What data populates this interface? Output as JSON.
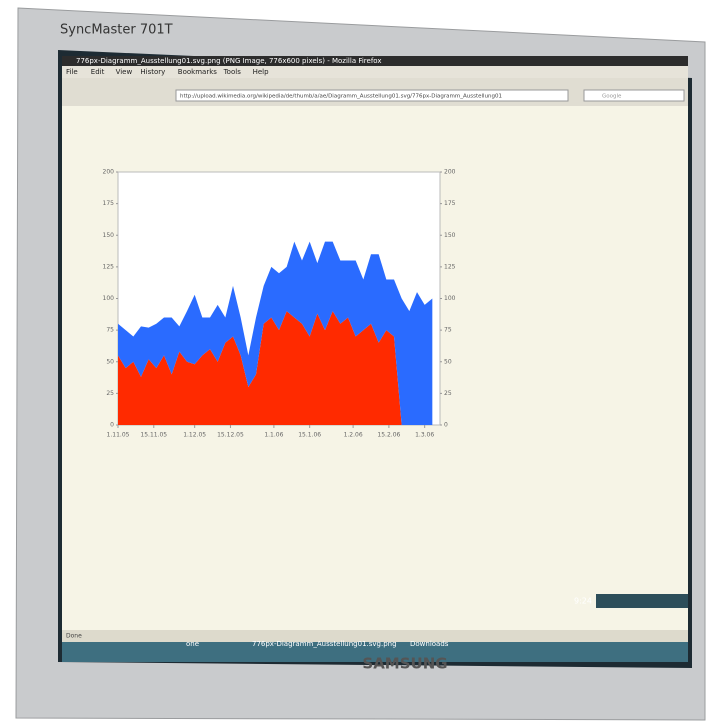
{
  "monitor": {
    "model": "SyncMaster 701T",
    "brand": "SAMSUNG"
  },
  "browser": {
    "title": "776px-Diagramm_Ausstellung01.svg.png (PNG Image, 776x600 pixels) - Mozilla Firefox",
    "menu": [
      "File",
      "Edit",
      "View",
      "History",
      "Bookmarks",
      "Tools",
      "Help"
    ],
    "url": "http://upload.wikimedia.org/wikipedia/de/thumb/a/ae/Diagramm_Ausstellung01.svg/776px-Diagramm_Ausstellung01",
    "search": "Google",
    "status": "Done"
  },
  "taskbar": {
    "items": [
      "one",
      "776px-Diagramm_Ausstellung01.svg.png",
      "Downloads"
    ],
    "clock": "9:24"
  },
  "chart_data": {
    "type": "area",
    "stacked": true,
    "x": [
      0,
      3,
      6,
      9,
      12,
      15,
      18,
      21,
      24,
      27,
      30,
      33,
      36,
      39,
      42,
      45,
      48,
      51,
      54,
      57,
      60,
      63,
      66,
      69,
      72,
      75,
      78,
      81,
      84,
      87,
      90,
      93,
      96,
      99,
      102,
      105,
      108,
      111,
      114,
      117,
      120,
      123
    ],
    "xlim": [
      0,
      126
    ],
    "xticks": [
      {
        "value": 0,
        "label": "1.11.05"
      },
      {
        "value": 14,
        "label": "15.11.05"
      },
      {
        "value": 30,
        "label": "1.12.05"
      },
      {
        "value": 44,
        "label": "15.12.05"
      },
      {
        "value": 61,
        "label": "1.1.06"
      },
      {
        "value": 75,
        "label": "15.1.06"
      },
      {
        "value": 92,
        "label": "1.2.06"
      },
      {
        "value": 106,
        "label": "15.2.06"
      },
      {
        "value": 120,
        "label": "1.3.06"
      }
    ],
    "ylim": [
      0,
      200
    ],
    "yticks": [
      0,
      25,
      50,
      75,
      100,
      125,
      150,
      175,
      200
    ],
    "y2lim": [
      0,
      200
    ],
    "y2ticks": [
      0,
      25,
      50,
      75,
      100,
      125,
      150,
      175,
      200
    ],
    "series": [
      {
        "color": "#ff2a00",
        "values": [
          55,
          45,
          50,
          38,
          52,
          45,
          55,
          40,
          58,
          50,
          48,
          55,
          60,
          50,
          65,
          70,
          55,
          30,
          40,
          80,
          85,
          75,
          90,
          85,
          80,
          70,
          88,
          75,
          90,
          80,
          85,
          70,
          75,
          80,
          65,
          75,
          70,
          0,
          0,
          0,
          0,
          0
        ]
      },
      {
        "color": "#2a6bff",
        "values": [
          25,
          30,
          20,
          40,
          25,
          35,
          30,
          45,
          20,
          40,
          55,
          30,
          25,
          45,
          20,
          40,
          30,
          25,
          45,
          30,
          40,
          45,
          35,
          60,
          50,
          75,
          40,
          70,
          55,
          50,
          45,
          60,
          40,
          55,
          70,
          40,
          45,
          100,
          90,
          105,
          95,
          100
        ]
      }
    ]
  }
}
